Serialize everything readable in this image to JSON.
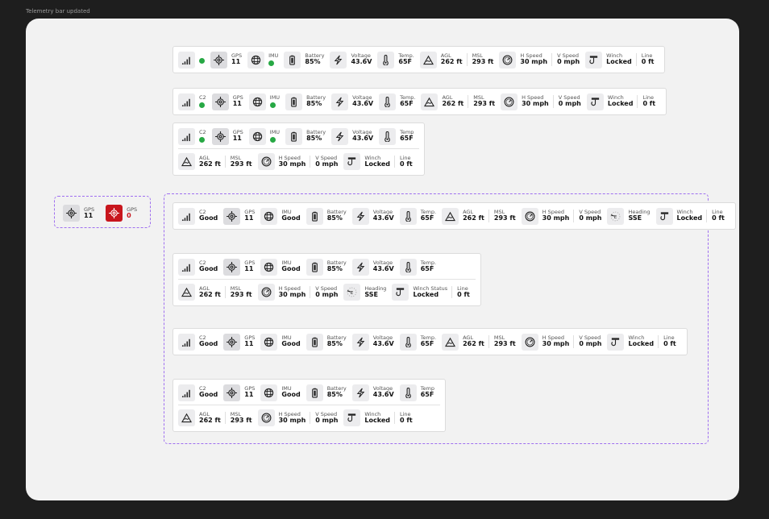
{
  "frame_title": "Telemetry bar updated",
  "colors": {
    "ok": "#27a844",
    "alert": "#c8161d",
    "selection": "#9f6ff0"
  },
  "gps_states": [
    {
      "icon": "gps-icon",
      "label": "GPS",
      "value": "11",
      "tile": "active"
    },
    {
      "icon": "gps-icon",
      "label": "GPS",
      "value": "0",
      "tile": "alert"
    }
  ],
  "bars": [
    {
      "rows": [
        [
          {
            "icon": "signal-icon",
            "dot": true
          },
          {
            "icon": "gps-icon",
            "tile": "active",
            "label": "GPS",
            "value": "11"
          },
          {
            "icon": "globe-icon",
            "label": "IMU",
            "dot": true
          },
          {
            "icon": "battery-icon",
            "label": "Battery",
            "value": "85%"
          },
          {
            "icon": "bolt-icon",
            "label": "Voltage",
            "value": "43.6V"
          },
          {
            "icon": "thermometer-icon",
            "label": "Temp.",
            "value": "65F"
          },
          {
            "icon": "mountain-icon",
            "label": "AGL",
            "value": "262 ft"
          },
          {
            "sep": true,
            "label": "MSL",
            "value": "293 ft"
          },
          {
            "icon": "gauge-icon",
            "label": "H Speed",
            "value": "30 mph"
          },
          {
            "sep": true,
            "label": "V Speed",
            "value": "0 mph"
          },
          {
            "icon": "winch-icon",
            "label": "Winch",
            "value": "Locked"
          },
          {
            "sep": true,
            "label": "Line",
            "value": "0 ft"
          }
        ]
      ]
    },
    {
      "rows": [
        [
          {
            "icon": "signal-icon",
            "label": "C2",
            "dot": true
          },
          {
            "icon": "gps-icon",
            "tile": "active",
            "label": "GPS",
            "value": "11"
          },
          {
            "icon": "globe-icon",
            "label": "IMU",
            "dot": true
          },
          {
            "icon": "battery-icon",
            "label": "Battery",
            "value": "85%"
          },
          {
            "icon": "bolt-icon",
            "label": "Voltage",
            "value": "43.6V"
          },
          {
            "icon": "thermometer-icon",
            "label": "Temp.",
            "value": "65F"
          },
          {
            "icon": "mountain-icon",
            "label": "AGL",
            "value": "262 ft"
          },
          {
            "sep": true,
            "label": "MSL",
            "value": "293 ft"
          },
          {
            "icon": "gauge-icon",
            "label": "H Speed",
            "value": "30 mph"
          },
          {
            "sep": true,
            "label": "V Speed",
            "value": "0 mph"
          },
          {
            "icon": "winch-icon",
            "label": "Winch",
            "value": "Locked"
          },
          {
            "sep": true,
            "label": "Line",
            "value": "0 ft"
          }
        ]
      ]
    },
    {
      "rows": [
        [
          {
            "icon": "signal-icon",
            "label": "C2",
            "dot": true
          },
          {
            "icon": "gps-icon",
            "tile": "active",
            "label": "GPS",
            "value": "11"
          },
          {
            "icon": "globe-icon",
            "label": "IMU",
            "dot": true
          },
          {
            "icon": "battery-icon",
            "label": "Battery",
            "value": "85%"
          },
          {
            "icon": "bolt-icon",
            "label": "Voltage",
            "value": "43.6V"
          },
          {
            "icon": "thermometer-icon",
            "label": "Temp",
            "value": "65F"
          }
        ],
        [
          {
            "icon": "mountain-icon",
            "label": "AGL",
            "value": "262 ft"
          },
          {
            "sep": true,
            "label": "MSL",
            "value": "293 ft"
          },
          {
            "icon": "gauge-icon",
            "label": "H Speed",
            "value": "30 mph"
          },
          {
            "sep": true,
            "label": "V Speed",
            "value": "0 mph"
          },
          {
            "icon": "winch-icon",
            "label": "Winch",
            "value": "Locked"
          },
          {
            "sep": true,
            "label": "Line",
            "value": "0 ft"
          }
        ]
      ]
    },
    {
      "rows": [
        [
          {
            "icon": "signal-icon",
            "label": "C2",
            "value": "Good"
          },
          {
            "icon": "gps-icon",
            "tile": "active",
            "label": "GPS",
            "value": "11"
          },
          {
            "icon": "globe-icon",
            "label": "IMU",
            "value": "Good"
          },
          {
            "icon": "battery-icon",
            "label": "Battery",
            "value": "85%"
          },
          {
            "icon": "bolt-icon",
            "label": "Voltage",
            "value": "43.6V"
          },
          {
            "icon": "thermometer-icon",
            "label": "Temp.",
            "value": "65F"
          },
          {
            "icon": "mountain-icon",
            "label": "AGL",
            "value": "262 ft"
          },
          {
            "sep": true,
            "label": "MSL",
            "value": "293 ft"
          },
          {
            "icon": "gauge-icon",
            "label": "H Speed",
            "value": "30 mph"
          },
          {
            "sep": true,
            "label": "V Speed",
            "value": "0 mph"
          },
          {
            "icon": "compass-icon",
            "label": "Heading",
            "value": "SSE"
          },
          {
            "icon": "winch-icon",
            "label": "Winch",
            "value": "Locked"
          },
          {
            "sep": true,
            "label": "Line",
            "value": "0 ft"
          }
        ]
      ]
    },
    {
      "rows": [
        [
          {
            "icon": "signal-icon",
            "label": "C2",
            "value": "Good"
          },
          {
            "icon": "gps-icon",
            "tile": "active",
            "label": "GPS",
            "value": "11"
          },
          {
            "icon": "globe-icon",
            "label": "IMU",
            "value": "Good"
          },
          {
            "icon": "battery-icon",
            "label": "Battery",
            "value": "85%"
          },
          {
            "icon": "bolt-icon",
            "label": "Voltage",
            "value": "43.6V"
          },
          {
            "icon": "thermometer-icon",
            "label": "Temp.",
            "value": "65F"
          }
        ],
        [
          {
            "icon": "mountain-icon",
            "label": "AGL",
            "value": "262 ft"
          },
          {
            "sep": true,
            "label": "MSL",
            "value": "293 ft"
          },
          {
            "icon": "gauge-icon",
            "label": "H Speed",
            "value": "30 mph"
          },
          {
            "sep": true,
            "label": "V Speed",
            "value": "0 mph"
          },
          {
            "icon": "compass-icon",
            "label": "Heading",
            "value": "SSE"
          },
          {
            "icon": "winch-icon",
            "label": "Winch Status",
            "value": "Locked"
          },
          {
            "sep": true,
            "label": "Line",
            "value": "0 ft"
          }
        ]
      ]
    },
    {
      "rows": [
        [
          {
            "icon": "signal-icon",
            "label": "C2",
            "value": "Good"
          },
          {
            "icon": "gps-icon",
            "tile": "active",
            "label": "GPS",
            "value": "11"
          },
          {
            "icon": "globe-icon",
            "label": "IMU",
            "value": "Good"
          },
          {
            "icon": "battery-icon",
            "label": "Battery",
            "value": "85%"
          },
          {
            "icon": "bolt-icon",
            "label": "Voltage",
            "value": "43.6V"
          },
          {
            "icon": "thermometer-icon",
            "label": "Temp.",
            "value": "65F"
          },
          {
            "icon": "mountain-icon",
            "label": "AGL",
            "value": "262 ft"
          },
          {
            "sep": true,
            "label": "MSL",
            "value": "293 ft"
          },
          {
            "icon": "gauge-icon",
            "label": "H Speed",
            "value": "30 mph"
          },
          {
            "sep": true,
            "label": "V Speed",
            "value": "0 mph"
          },
          {
            "icon": "winch-icon",
            "label": "Winch",
            "value": "Locked"
          },
          {
            "sep": true,
            "label": "Line",
            "value": "0 ft"
          }
        ]
      ]
    },
    {
      "rows": [
        [
          {
            "icon": "signal-icon",
            "label": "C2",
            "value": "Good"
          },
          {
            "icon": "gps-icon",
            "tile": "active",
            "label": "GPS",
            "value": "11"
          },
          {
            "icon": "globe-icon",
            "label": "IMU",
            "value": "Good"
          },
          {
            "icon": "battery-icon",
            "label": "Battery",
            "value": "85%"
          },
          {
            "icon": "bolt-icon",
            "label": "Voltage",
            "value": "43.6V"
          },
          {
            "icon": "thermometer-icon",
            "label": "Temp",
            "value": "65F"
          }
        ],
        [
          {
            "icon": "mountain-icon",
            "label": "AGL",
            "value": "262 ft"
          },
          {
            "sep": true,
            "label": "MSL",
            "value": "293 ft"
          },
          {
            "icon": "gauge-icon",
            "label": "H Speed",
            "value": "30 mph"
          },
          {
            "sep": true,
            "label": "V Speed",
            "value": "0 mph"
          },
          {
            "icon": "winch-icon",
            "label": "Winch",
            "value": "Locked"
          },
          {
            "sep": true,
            "label": "Line",
            "value": "0 ft"
          }
        ]
      ]
    }
  ]
}
